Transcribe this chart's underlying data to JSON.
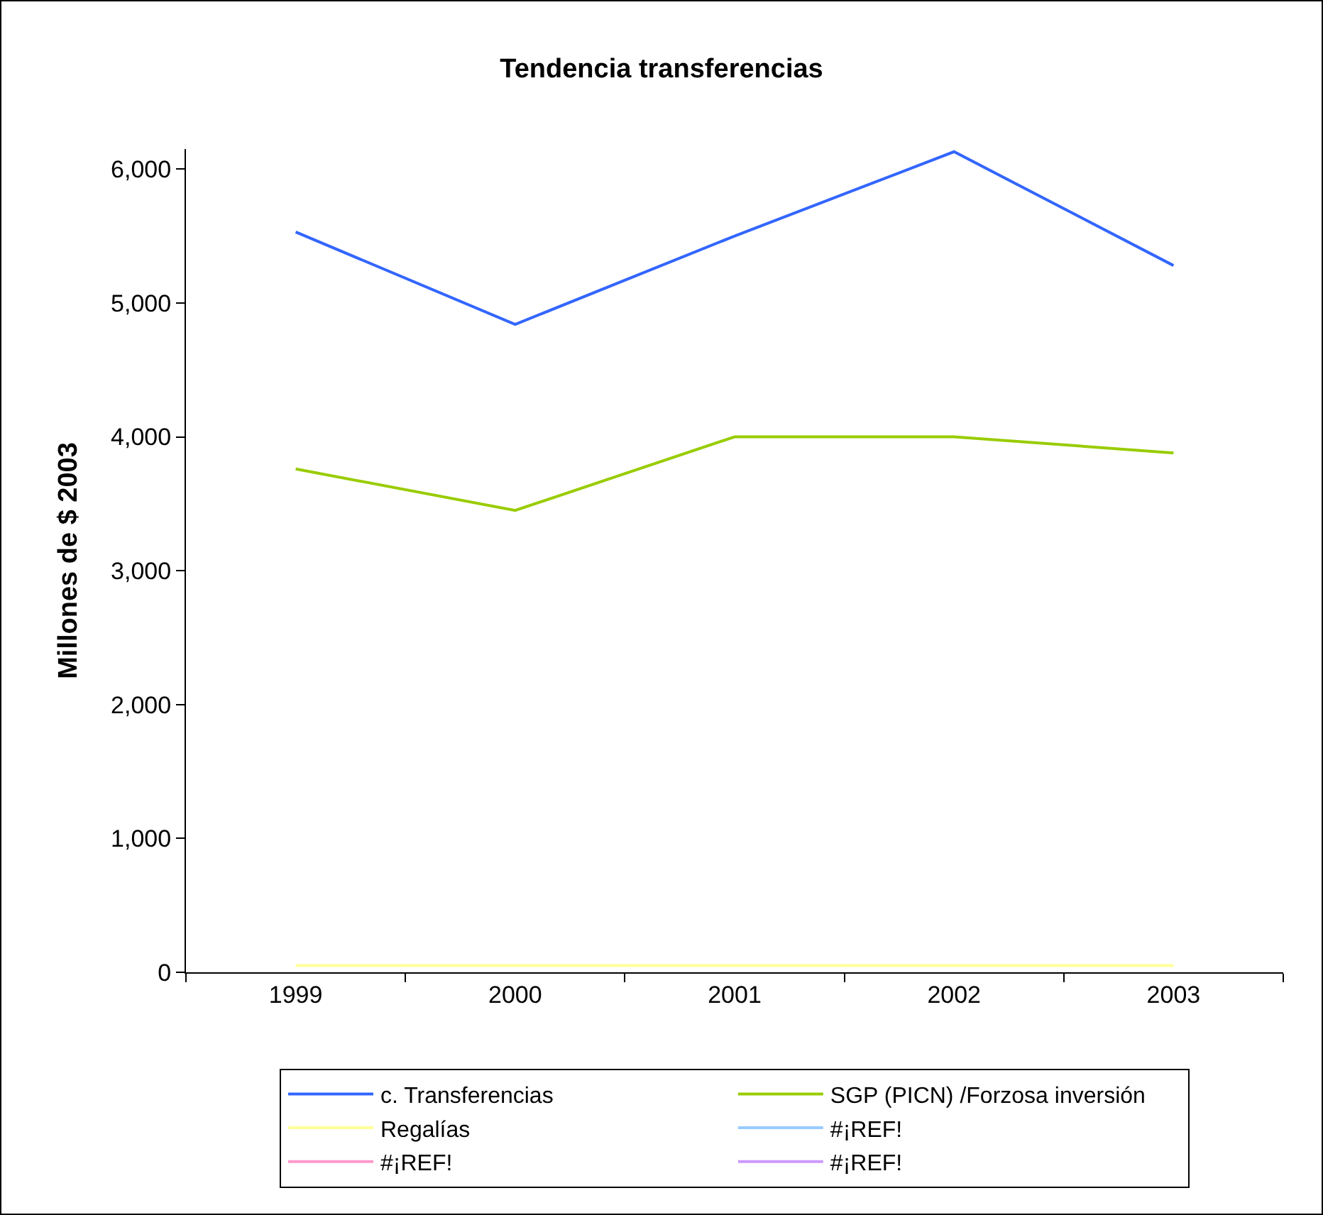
{
  "chart_data": {
    "type": "line",
    "title": "Tendencia transferencias",
    "ylabel": "Millones de $ 2003",
    "categories": [
      "1999",
      "2000",
      "2001",
      "2002",
      "2003"
    ],
    "series": [
      {
        "name": "c. Transferencias",
        "color": "#3366ff",
        "values": [
          5530,
          4840,
          5500,
          6130,
          5280
        ]
      },
      {
        "name": "SGP (PICN) /Forzosa inversión",
        "color": "#99cc00",
        "values": [
          3760,
          3450,
          4000,
          4000,
          3880
        ]
      },
      {
        "name": "Regalías",
        "color": "#ffff99",
        "values": [
          50,
          50,
          50,
          50,
          50
        ]
      },
      {
        "name": "#¡REF!",
        "color": "#99ccff",
        "values": [
          null,
          null,
          null,
          null,
          null
        ]
      },
      {
        "name": "#¡REF!",
        "color": "#ff99cc",
        "values": [
          null,
          null,
          null,
          null,
          null
        ]
      },
      {
        "name": "#¡REF!",
        "color": "#cc99ff",
        "values": [
          null,
          null,
          null,
          null,
          null
        ]
      }
    ],
    "ylim": [
      0,
      6150
    ],
    "yticks": [
      {
        "value": 0,
        "label": "0"
      },
      {
        "value": 1000,
        "label": "1,000"
      },
      {
        "value": 2000,
        "label": "2,000"
      },
      {
        "value": 3000,
        "label": "3,000"
      },
      {
        "value": 4000,
        "label": "4,000"
      },
      {
        "value": 5000,
        "label": "5,000"
      },
      {
        "value": 6000,
        "label": "6,000"
      }
    ],
    "grid": false,
    "legend": "bottom",
    "marker": "none",
    "line_style": "solid"
  }
}
